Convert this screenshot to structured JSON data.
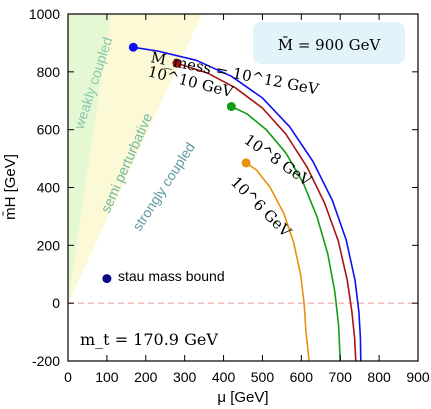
{
  "chart_data": {
    "type": "line",
    "xlabel": "μ [GeV]",
    "ylabel": "m̄H [GeV]",
    "xlim": [
      0,
      900
    ],
    "ylim": [
      -200,
      1000
    ],
    "xticks": [
      0,
      100,
      200,
      300,
      400,
      500,
      600,
      700,
      800,
      900
    ],
    "yticks": [
      -200,
      0,
      200,
      400,
      600,
      800,
      1000
    ],
    "x_tick_labels": [
      "0",
      "100",
      "200",
      "300",
      "400",
      "500",
      "600",
      "700",
      "800",
      "900"
    ],
    "y_tick_labels": [
      "-200",
      "0",
      "200",
      "400",
      "600",
      "800",
      "1000"
    ],
    "series": [
      {
        "name": "M_mess = 10^12 GeV",
        "color": "#1010ee",
        "points": [
          [
            168,
            885
          ],
          [
            230,
            872
          ],
          [
            330,
            840
          ],
          [
            420,
            785
          ],
          [
            500,
            710
          ],
          [
            570,
            610
          ],
          [
            630,
            490
          ],
          [
            680,
            355
          ],
          [
            715,
            220
          ],
          [
            738,
            80
          ],
          [
            748,
            -30
          ],
          [
            752,
            -120
          ],
          [
            753,
            -200
          ]
        ],
        "endpoint": [
          168,
          885
        ]
      },
      {
        "name": "M_mess = 10^10 GeV",
        "color": "#aa1111",
        "points": [
          [
            280,
            830
          ],
          [
            360,
            795
          ],
          [
            430,
            745
          ],
          [
            500,
            675
          ],
          [
            560,
            585
          ],
          [
            615,
            470
          ],
          [
            660,
            345
          ],
          [
            695,
            215
          ],
          [
            718,
            80
          ],
          [
            730,
            -30
          ],
          [
            737,
            -120
          ],
          [
            740,
            -200
          ]
        ],
        "endpoint": [
          280,
          830
        ]
      },
      {
        "name": "M_mess = 10^8 GeV",
        "color": "#129e12",
        "points": [
          [
            420,
            680
          ],
          [
            460,
            655
          ],
          [
            510,
            600
          ],
          [
            560,
            520
          ],
          [
            605,
            415
          ],
          [
            640,
            300
          ],
          [
            668,
            170
          ],
          [
            686,
            40
          ],
          [
            696,
            -80
          ],
          [
            700,
            -200
          ]
        ],
        "endpoint": [
          420,
          680
        ]
      },
      {
        "name": "M_mess = 10^6 GeV",
        "color": "#e8900a",
        "points": [
          [
            458,
            485
          ],
          [
            485,
            460
          ],
          [
            520,
            400
          ],
          [
            555,
            310
          ],
          [
            580,
            210
          ],
          [
            598,
            100
          ],
          [
            607,
            0
          ],
          [
            612,
            -100
          ],
          [
            620,
            -200
          ]
        ],
        "endpoint": [
          458,
          485
        ]
      }
    ],
    "regions": [
      {
        "name": "weakly coupled",
        "color": "#e6f7d4",
        "text_color": "#86c8ac"
      },
      {
        "name": "semi perturbative",
        "color": "#fbf9d6",
        "text_color": "#72b8a8"
      },
      {
        "name": "strongly coupled",
        "color": "#ffffff",
        "text_color": "#5f9aa0"
      }
    ],
    "stau_bound_point": {
      "x": 100,
      "y": 85,
      "color": "#0a0a88"
    },
    "annotations": {
      "m_bar": "M̄ = 900 GeV",
      "m_top": "m_t = 170.9 GeV",
      "stau_label": "stau mass bound",
      "label_1e12": "M_mess = 10^12 GeV",
      "label_1e10": "10^10 GeV",
      "label_1e8": "10^8 GeV",
      "label_1e6": "10^6 GeV"
    },
    "zero_line_color": "#f4b4b4",
    "grid": false
  }
}
